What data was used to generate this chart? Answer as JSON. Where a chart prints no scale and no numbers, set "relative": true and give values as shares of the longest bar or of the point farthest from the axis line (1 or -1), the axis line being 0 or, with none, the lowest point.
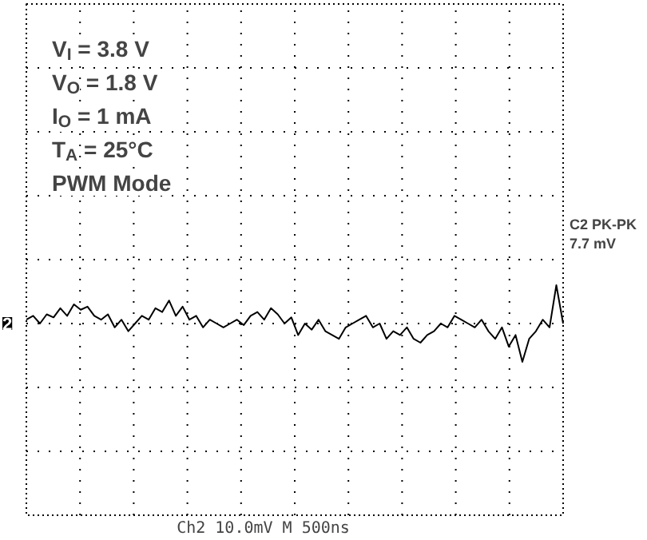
{
  "chart_data": {
    "type": "line",
    "relative": true,
    "grid": true,
    "tick_labels": false,
    "categories": [
      null,
      null,
      null,
      null,
      null,
      null,
      null,
      null,
      null,
      null,
      null,
      null,
      null,
      null,
      null,
      null,
      null,
      null,
      null,
      null,
      null,
      null,
      null,
      null,
      null,
      null,
      null,
      null,
      null,
      null,
      null,
      null,
      null,
      null,
      null,
      null,
      null,
      null,
      null,
      null,
      null,
      null,
      null,
      null,
      null,
      null,
      null,
      null,
      null,
      null,
      null,
      null,
      null,
      null,
      null,
      null,
      null,
      null,
      null,
      null,
      null,
      null,
      null,
      null,
      null,
      null,
      null,
      null,
      null,
      null,
      null,
      null,
      null,
      null,
      null,
      null,
      null,
      null,
      null,
      null
    ],
    "series": [
      {
        "color": "#000000",
        "values": [
          0.1,
          0.2,
          0.0,
          0.24,
          0.16,
          0.4,
          0.2,
          0.5,
          0.36,
          0.44,
          0.2,
          0.1,
          0.24,
          -0.1,
          0.1,
          -0.2,
          0.0,
          0.2,
          0.1,
          0.4,
          0.3,
          0.6,
          0.2,
          0.44,
          0.1,
          0.2,
          -0.1,
          0.1,
          0.0,
          -0.1,
          0.0,
          0.1,
          -0.04,
          0.2,
          0.3,
          0.1,
          0.4,
          0.24,
          0.0,
          0.16,
          -0.3,
          0.0,
          -0.16,
          0.1,
          -0.2,
          -0.3,
          -0.4,
          -0.1,
          0.0,
          0.1,
          0.2,
          -0.1,
          0.0,
          -0.4,
          -0.2,
          -0.3,
          -0.1,
          -0.4,
          -0.5,
          -0.3,
          -0.2,
          0.0,
          -0.1,
          0.2,
          0.1,
          0.0,
          -0.1,
          0.1,
          -0.2,
          -0.4,
          -0.1,
          -0.6,
          -0.3,
          -1.0,
          -0.4,
          -0.2,
          0.1,
          -0.1,
          1.0,
          0.0
        ]
      }
    ],
    "annotations": [
      "V$_{I}$ = 3.8 V",
      "V$_{O}$ = 1.8 V",
      "I$_{O}$ = 1 mA",
      "T$_{A}$ = 25°C",
      "PWM Mode",
      "C2 PK-PK",
      "7.7 mV",
      "2",
      "Ch2 10.0mV M 500ns"
    ]
  }
}
